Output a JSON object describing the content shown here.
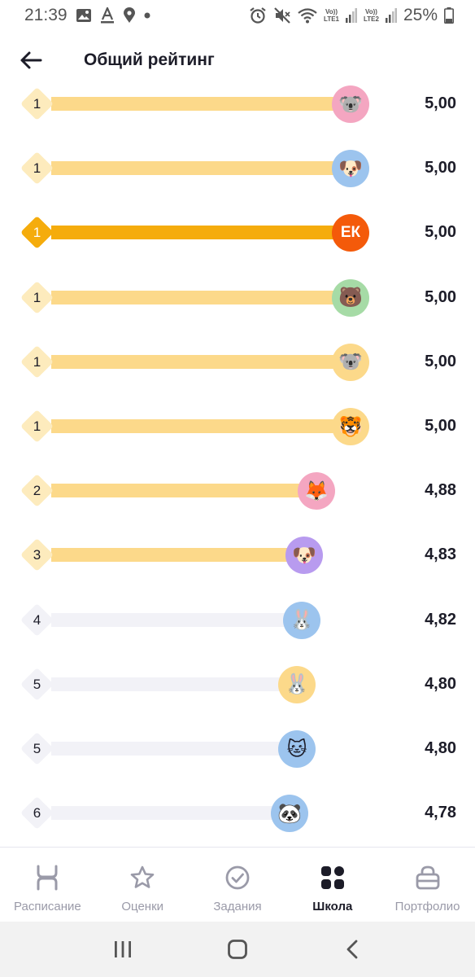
{
  "status_bar": {
    "time": "21:39",
    "battery": "25%",
    "sim1": "LTE1",
    "sim2": "LTE2",
    "volte": "Vo))"
  },
  "header": {
    "title": "Общий рейтинг",
    "back_icon": "arrow-left-icon"
  },
  "colors": {
    "bar_filled": "#fcd98a",
    "bar_current": "#f5ac0c",
    "bar_empty": "#f2f2f7",
    "diamond_filled": "#fdebbd",
    "diamond_current": "#f5ac0c",
    "diamond_empty": "#f2f2f7",
    "accent_initials": "#f45a0a"
  },
  "rating": [
    {
      "rank": "1",
      "score": "5,00",
      "level": 1.0,
      "state": "filled",
      "avatar": "koala",
      "avatar_emoji": "🐨",
      "avatar_bg": "#f4a6c1"
    },
    {
      "rank": "1",
      "score": "5,00",
      "level": 1.0,
      "state": "filled",
      "avatar": "dog",
      "avatar_emoji": "🐶",
      "avatar_bg": "#9cc4ee"
    },
    {
      "rank": "1",
      "score": "5,00",
      "level": 1.0,
      "state": "current",
      "avatar": "initials",
      "initials": "ЕК",
      "avatar_bg": "#f45a0a"
    },
    {
      "rank": "1",
      "score": "5,00",
      "level": 1.0,
      "state": "filled",
      "avatar": "bear",
      "avatar_emoji": "🐻",
      "avatar_bg": "#a6dba6"
    },
    {
      "rank": "1",
      "score": "5,00",
      "level": 1.0,
      "state": "filled",
      "avatar": "koala",
      "avatar_emoji": "🐨",
      "avatar_bg": "#fcd98a"
    },
    {
      "rank": "1",
      "score": "5,00",
      "level": 1.0,
      "state": "filled",
      "avatar": "tiger",
      "avatar_emoji": "🐯",
      "avatar_bg": "#fcd98a"
    },
    {
      "rank": "2",
      "score": "4,88",
      "level": 0.86,
      "state": "filled",
      "avatar": "fox",
      "avatar_emoji": "🦊",
      "avatar_bg": "#f4a6c1"
    },
    {
      "rank": "3",
      "score": "4,83",
      "level": 0.81,
      "state": "filled",
      "avatar": "dog",
      "avatar_emoji": "🐶",
      "avatar_bg": "#b89bef"
    },
    {
      "rank": "4",
      "score": "4,82",
      "level": 0.8,
      "state": "empty",
      "avatar": "rabbit",
      "avatar_emoji": "🐰",
      "avatar_bg": "#9cc4ee"
    },
    {
      "rank": "5",
      "score": "4,80",
      "level": 0.78,
      "state": "empty",
      "avatar": "rabbit",
      "avatar_emoji": "🐰",
      "avatar_bg": "#fcd98a"
    },
    {
      "rank": "5",
      "score": "4,80",
      "level": 0.78,
      "state": "empty",
      "avatar": "cat",
      "avatar_emoji": "🐱",
      "avatar_bg": "#9cc4ee"
    },
    {
      "rank": "6",
      "score": "4,78",
      "level": 0.75,
      "state": "empty",
      "avatar": "panda",
      "avatar_emoji": "🐼",
      "avatar_bg": "#9cc4ee"
    }
  ],
  "bottom_nav": [
    {
      "label": "Расписание",
      "icon": "schedule-icon",
      "active": false
    },
    {
      "label": "Оценки",
      "icon": "star-icon",
      "active": false
    },
    {
      "label": "Задания",
      "icon": "check-circle-icon",
      "active": false
    },
    {
      "label": "Школа",
      "icon": "school-grid-icon",
      "active": true
    },
    {
      "label": "Портфолио",
      "icon": "briefcase-icon",
      "active": false
    }
  ],
  "system_nav": [
    "recents-icon",
    "home-icon",
    "back-icon"
  ]
}
